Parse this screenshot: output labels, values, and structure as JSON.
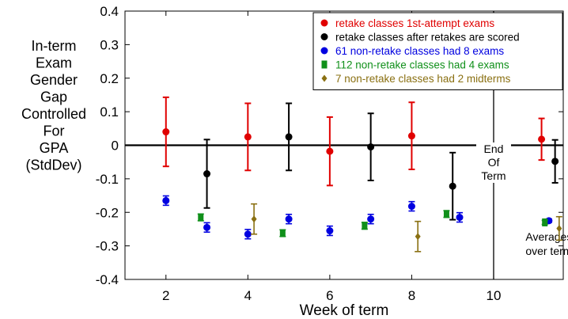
{
  "chart_data": {
    "type": "scatter",
    "ylabel_lines": [
      "In-term",
      "Exam",
      "Gender",
      "Gap",
      "Controlled",
      "For",
      "GPA",
      "(StdDev)"
    ],
    "xlabel": "Week of term",
    "xlim": [
      1,
      11.7
    ],
    "ylim": [
      -0.4,
      0.4
    ],
    "xticks": [
      2,
      4,
      6,
      8,
      10
    ],
    "xtick_labels": [
      "2",
      "4",
      "6",
      "8",
      "10"
    ],
    "yticks": [
      -0.4,
      -0.3,
      -0.2,
      -0.1,
      0,
      0.1,
      0.2,
      0.3,
      0.4
    ],
    "ytick_labels": [
      "-0.4",
      "-0.3",
      "-0.2",
      "-0.1",
      "0",
      "0.1",
      "0.2",
      "0.3",
      "0.4"
    ],
    "annotations": {
      "end_of_term": [
        "End",
        "Of",
        "Term"
      ],
      "averages": [
        "Averages",
        "over term"
      ]
    },
    "end_of_term_x": 10,
    "legend_position": "top-right",
    "series": [
      {
        "name": "retake classes 1st-attempt exams",
        "color": "#e00000",
        "marker": "circle",
        "points": [
          {
            "x": 2.0,
            "y": 0.04,
            "err": 0.103
          },
          {
            "x": 4.0,
            "y": 0.025,
            "err": 0.1
          },
          {
            "x": 6.0,
            "y": -0.018,
            "err": 0.102
          },
          {
            "x": 8.0,
            "y": 0.028,
            "err": 0.1
          },
          {
            "x": 11.17,
            "y": 0.018,
            "err": 0.062
          }
        ]
      },
      {
        "name": "retake classes after retakes are scored",
        "color": "#000000",
        "marker": "circle",
        "points": [
          {
            "x": 3.0,
            "y": -0.085,
            "err": 0.102
          },
          {
            "x": 5.0,
            "y": 0.025,
            "err": 0.1
          },
          {
            "x": 7.0,
            "y": -0.005,
            "err": 0.1
          },
          {
            "x": 9.0,
            "y": -0.122,
            "err": 0.1
          },
          {
            "x": 11.5,
            "y": -0.048,
            "err": 0.064
          }
        ]
      },
      {
        "name": "61 non-retake classes had 8 exams",
        "color": "#0000e0",
        "marker": "circle",
        "points": [
          {
            "x": 2.0,
            "y": -0.165,
            "err": 0.014
          },
          {
            "x": 3.0,
            "y": -0.245,
            "err": 0.014
          },
          {
            "x": 4.0,
            "y": -0.265,
            "err": 0.014
          },
          {
            "x": 5.0,
            "y": -0.22,
            "err": 0.014
          },
          {
            "x": 6.0,
            "y": -0.255,
            "err": 0.014
          },
          {
            "x": 7.0,
            "y": -0.22,
            "err": 0.014
          },
          {
            "x": 8.0,
            "y": -0.182,
            "err": 0.014
          },
          {
            "x": 9.17,
            "y": -0.215,
            "err": 0.014
          },
          {
            "x": 11.35,
            "y": -0.225,
            "err": 0.005
          }
        ]
      },
      {
        "name": "112 non-retake classes had 4 exams",
        "color": "#10901a",
        "marker": "square",
        "points": [
          {
            "x": 2.85,
            "y": -0.215,
            "err": 0.01
          },
          {
            "x": 4.85,
            "y": -0.262,
            "err": 0.01
          },
          {
            "x": 6.85,
            "y": -0.24,
            "err": 0.01
          },
          {
            "x": 8.85,
            "y": -0.205,
            "err": 0.01
          },
          {
            "x": 11.25,
            "y": -0.23,
            "err": 0.006
          }
        ]
      },
      {
        "name": "7 non-retake classes had 2 midterms",
        "color": "#8a7012",
        "marker": "diamond",
        "points": [
          {
            "x": 4.15,
            "y": -0.22,
            "err": 0.045
          },
          {
            "x": 8.15,
            "y": -0.272,
            "err": 0.045
          },
          {
            "x": 11.6,
            "y": -0.248,
            "err": 0.035
          }
        ]
      }
    ]
  }
}
